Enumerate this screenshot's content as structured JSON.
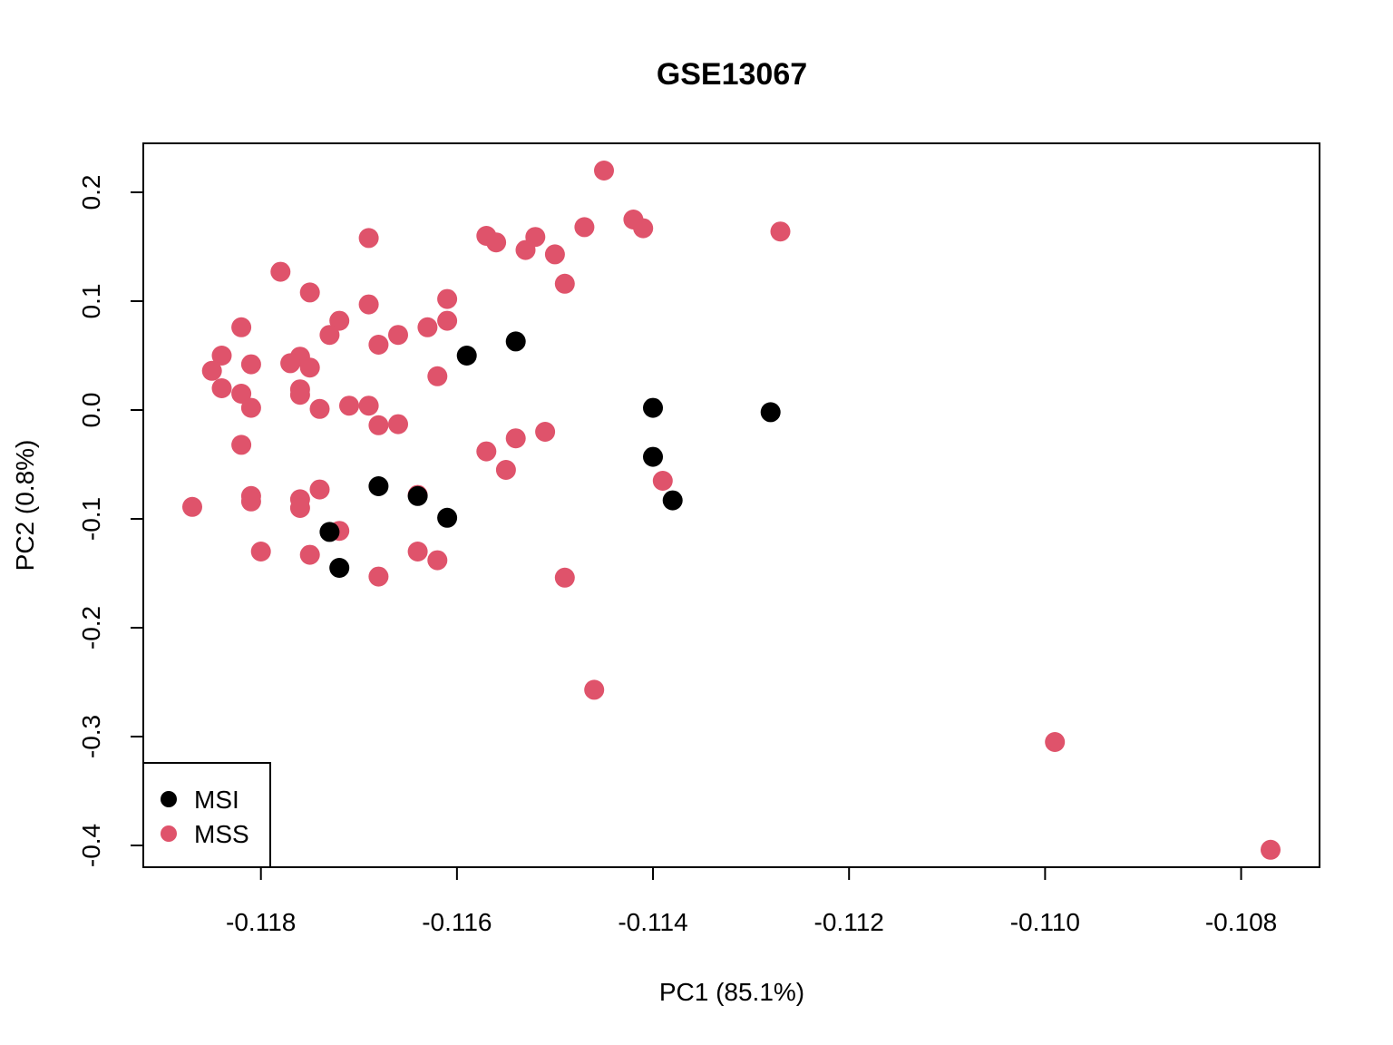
{
  "chart_data": {
    "type": "scatter",
    "title": "GSE13067",
    "xlabel": "PC1 (85.1%)",
    "ylabel": "PC2 (0.8%)",
    "xlim": [
      -0.1192,
      -0.1072
    ],
    "ylim": [
      -0.42,
      0.245
    ],
    "xticks": [
      {
        "value": -0.118,
        "label": "-0.118"
      },
      {
        "value": -0.116,
        "label": "-0.116"
      },
      {
        "value": -0.114,
        "label": "-0.114"
      },
      {
        "value": -0.112,
        "label": "-0.112"
      },
      {
        "value": -0.11,
        "label": "-0.110"
      },
      {
        "value": -0.108,
        "label": "-0.108"
      }
    ],
    "yticks": [
      {
        "value": 0.2,
        "label": "0.2"
      },
      {
        "value": 0.1,
        "label": "0.1"
      },
      {
        "value": 0.0,
        "label": "0.0"
      },
      {
        "value": -0.1,
        "label": "-0.1"
      },
      {
        "value": -0.2,
        "label": "-0.2"
      },
      {
        "value": -0.3,
        "label": "-0.3"
      },
      {
        "value": -0.4,
        "label": "-0.4"
      }
    ],
    "grid": false,
    "legend_position": "bottom-left",
    "series": [
      {
        "name": "MSS",
        "color": "#DF536B",
        "points": [
          [
            -0.1145,
            0.22
          ],
          [
            -0.1142,
            0.175
          ],
          [
            -0.1141,
            0.167
          ],
          [
            -0.1147,
            0.168
          ],
          [
            -0.1127,
            0.164
          ],
          [
            -0.1157,
            0.16
          ],
          [
            -0.1152,
            0.159
          ],
          [
            -0.1156,
            0.154
          ],
          [
            -0.1153,
            0.147
          ],
          [
            -0.115,
            0.143
          ],
          [
            -0.1169,
            0.158
          ],
          [
            -0.1178,
            0.127
          ],
          [
            -0.1149,
            0.116
          ],
          [
            -0.1175,
            0.108
          ],
          [
            -0.1161,
            0.102
          ],
          [
            -0.1169,
            0.097
          ],
          [
            -0.1172,
            0.082
          ],
          [
            -0.1161,
            0.082
          ],
          [
            -0.1163,
            0.076
          ],
          [
            -0.1182,
            0.076
          ],
          [
            -0.1173,
            0.069
          ],
          [
            -0.1166,
            0.069
          ],
          [
            -0.1168,
            0.06
          ],
          [
            -0.1184,
            0.05
          ],
          [
            -0.1176,
            0.049
          ],
          [
            -0.1177,
            0.043
          ],
          [
            -0.1181,
            0.042
          ],
          [
            -0.1175,
            0.039
          ],
          [
            -0.1185,
            0.036
          ],
          [
            -0.1162,
            0.031
          ],
          [
            -0.1184,
            0.02
          ],
          [
            -0.1176,
            0.019
          ],
          [
            -0.1182,
            0.015
          ],
          [
            -0.1176,
            0.014
          ],
          [
            -0.1171,
            0.004
          ],
          [
            -0.1169,
            0.004
          ],
          [
            -0.1181,
            0.002
          ],
          [
            -0.1174,
            0.001
          ],
          [
            -0.1168,
            -0.014
          ],
          [
            -0.1166,
            -0.013
          ],
          [
            -0.1151,
            -0.02
          ],
          [
            -0.1154,
            -0.026
          ],
          [
            -0.1182,
            -0.032
          ],
          [
            -0.1157,
            -0.038
          ],
          [
            -0.1155,
            -0.055
          ],
          [
            -0.1139,
            -0.065
          ],
          [
            -0.1174,
            -0.073
          ],
          [
            -0.1164,
            -0.078
          ],
          [
            -0.1181,
            -0.079
          ],
          [
            -0.1181,
            -0.084
          ],
          [
            -0.1176,
            -0.082
          ],
          [
            -0.1176,
            -0.09
          ],
          [
            -0.1187,
            -0.089
          ],
          [
            -0.1172,
            -0.111
          ],
          [
            -0.118,
            -0.13
          ],
          [
            -0.1175,
            -0.133
          ],
          [
            -0.1164,
            -0.13
          ],
          [
            -0.1162,
            -0.138
          ],
          [
            -0.1168,
            -0.153
          ],
          [
            -0.1149,
            -0.154
          ],
          [
            -0.1146,
            -0.257
          ],
          [
            -0.1099,
            -0.305
          ],
          [
            -0.1077,
            -0.404
          ]
        ]
      },
      {
        "name": "MSI",
        "color": "#000000",
        "points": [
          [
            -0.1154,
            0.063
          ],
          [
            -0.1159,
            0.05
          ],
          [
            -0.114,
            0.002
          ],
          [
            -0.1128,
            -0.002
          ],
          [
            -0.114,
            -0.043
          ],
          [
            -0.1138,
            -0.083
          ],
          [
            -0.1168,
            -0.07
          ],
          [
            -0.1164,
            -0.079
          ],
          [
            -0.1161,
            -0.099
          ],
          [
            -0.1173,
            -0.112
          ],
          [
            -0.1172,
            -0.145
          ]
        ]
      }
    ],
    "legend": [
      {
        "label": "MSI",
        "color": "#000000"
      },
      {
        "label": "MSS",
        "color": "#DF536B"
      }
    ]
  }
}
